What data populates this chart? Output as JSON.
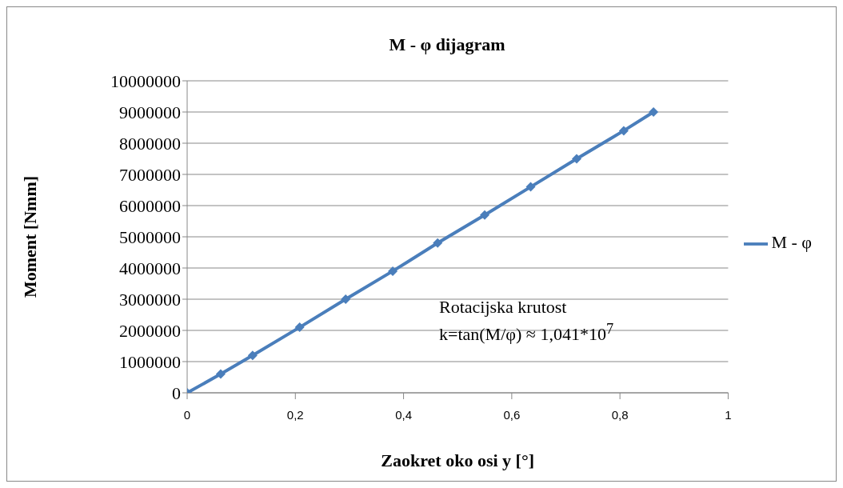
{
  "chart_data": {
    "type": "line",
    "title": "M - φ dijagram",
    "xlabel": "Zaokret oko osi y  [°]",
    "ylabel": "Moment [Nmm]",
    "x": [
      0,
      0.062,
      0.121,
      0.208,
      0.293,
      0.38,
      0.463,
      0.55,
      0.635,
      0.72,
      0.807,
      0.862
    ],
    "series": [
      {
        "name": "M - φ",
        "color": "#4a7ebb",
        "values": [
          0,
          600000,
          1200000,
          2100000,
          3000000,
          3900000,
          4800000,
          5700000,
          6600000,
          7500000,
          8400000,
          9000000
        ]
      }
    ],
    "xlim": [
      0,
      1
    ],
    "xticks": [
      0,
      {
        "value": 0.2,
        "label": "0,2"
      },
      {
        "value": 0.4,
        "label": "0,4"
      },
      {
        "value": 0.6,
        "label": "0,6"
      },
      {
        "value": 0.8,
        "label": "0,8"
      },
      1
    ],
    "ylim": [
      0,
      10000000
    ],
    "yticks": [
      0,
      1000000,
      2000000,
      3000000,
      4000000,
      5000000,
      6000000,
      7000000,
      8000000,
      9000000,
      10000000
    ],
    "grid": "y",
    "legend": "right",
    "marker": "diamond",
    "line_style": "solid",
    "annotations": [
      "Rotacijska krutost",
      "k=tan(M/φ) ≈ 1,041*10$^{7}$"
    ]
  }
}
